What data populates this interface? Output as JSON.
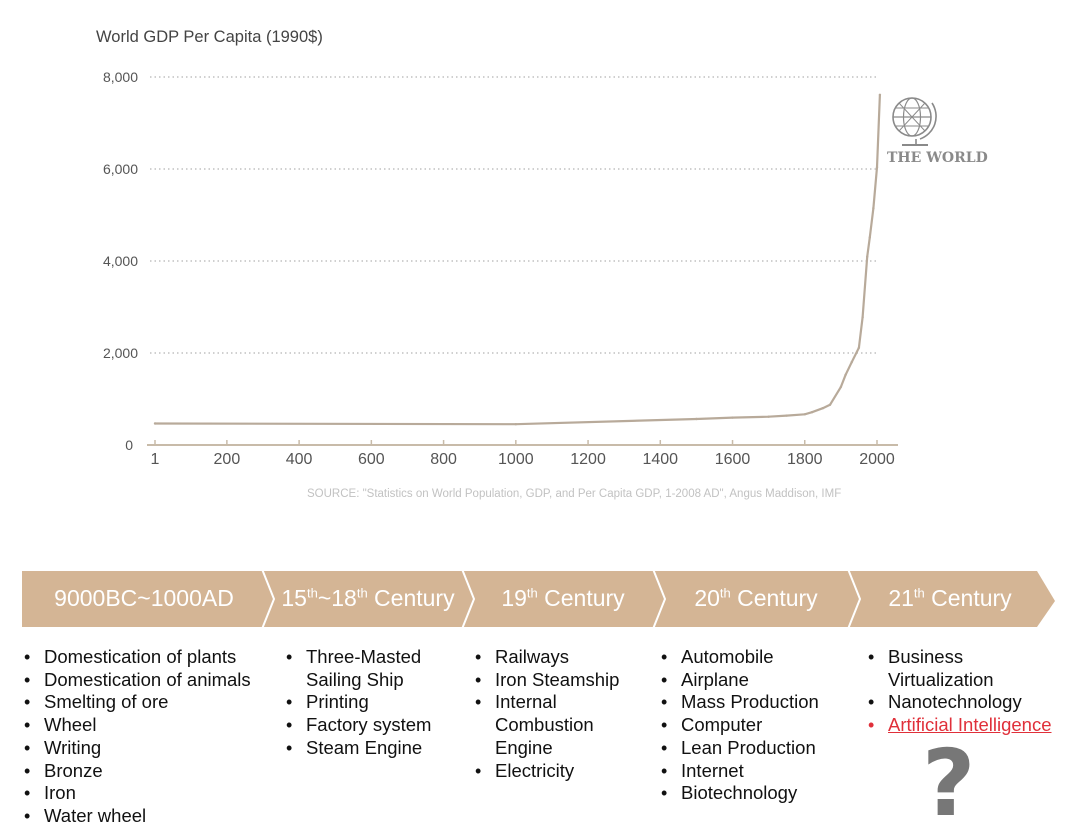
{
  "chart_data": {
    "type": "line",
    "title": "World GDP Per Capita (1990$)",
    "xlabel": "",
    "ylabel": "",
    "x_ticks": [
      1,
      200,
      400,
      600,
      800,
      1000,
      1200,
      1400,
      1600,
      1800,
      2000
    ],
    "y_ticks": [
      0,
      2000,
      4000,
      6000,
      8000
    ],
    "y_tick_labels": [
      "0",
      "2,000",
      "4,000",
      "6,000",
      "8,000"
    ],
    "xlim": [
      1,
      2008
    ],
    "ylim": [
      0,
      8000
    ],
    "grid": "horizontal dotted",
    "series": [
      {
        "name": "",
        "color": "#b8aa9a",
        "points": [
          [
            1,
            467
          ],
          [
            1000,
            453
          ],
          [
            1500,
            566
          ],
          [
            1600,
            596
          ],
          [
            1700,
            615
          ],
          [
            1750,
            640
          ],
          [
            1800,
            667
          ],
          [
            1820,
            712
          ],
          [
            1850,
            800
          ],
          [
            1870,
            873
          ],
          [
            1900,
            1262
          ],
          [
            1913,
            1526
          ],
          [
            1930,
            1800
          ],
          [
            1950,
            2113
          ],
          [
            1960,
            2777
          ],
          [
            1973,
            4091
          ],
          [
            1980,
            4512
          ],
          [
            1990,
            5150
          ],
          [
            2000,
            6038
          ],
          [
            2008,
            7614
          ]
        ]
      }
    ],
    "annotation": "THE WORLD",
    "source": "SOURCE: \"Statistics on World Population, GDP, and Per Capita GDP, 1-2008 AD\", Angus Maddison, IMF"
  },
  "timeline": {
    "arrow_color": "#d4b595",
    "eras": [
      {
        "main": "9000BC~1000AD",
        "sup1": "",
        "mid": "",
        "sup2": "",
        "tail": ""
      },
      {
        "main": "15",
        "sup1": "th",
        "mid": "~18",
        "sup2": "th",
        "tail": " Century"
      },
      {
        "main": "19",
        "sup1": "th",
        "mid": " Century",
        "sup2": "",
        "tail": ""
      },
      {
        "main": "20",
        "sup1": "th",
        "mid": " Century",
        "sup2": "",
        "tail": ""
      },
      {
        "main": "21",
        "sup1": "th",
        "mid": " Century",
        "sup2": "",
        "tail": ""
      }
    ],
    "columns": [
      {
        "items": [
          "Domestication of plants",
          "Domestication of animals",
          "Smelting of ore",
          "Wheel",
          "Writing",
          "Bronze",
          "Iron",
          "Water wheel"
        ]
      },
      {
        "items": [
          "Three-Masted",
          "Sailing Ship",
          "Printing",
          "Factory system",
          "Steam Engine"
        ]
      },
      {
        "items": [
          "Railways",
          "Iron Steamship",
          "Internal",
          "Combustion",
          "Engine",
          "Electricity"
        ]
      },
      {
        "items": [
          "Automobile",
          "Airplane",
          "Mass Production",
          "Computer",
          "Lean Production",
          "Internet",
          "Biotechnology"
        ]
      },
      {
        "items": [
          "Business",
          "Virtualization",
          "Nanotechnology",
          "Artificial Intelligence"
        ]
      }
    ],
    "question_mark": "?"
  }
}
